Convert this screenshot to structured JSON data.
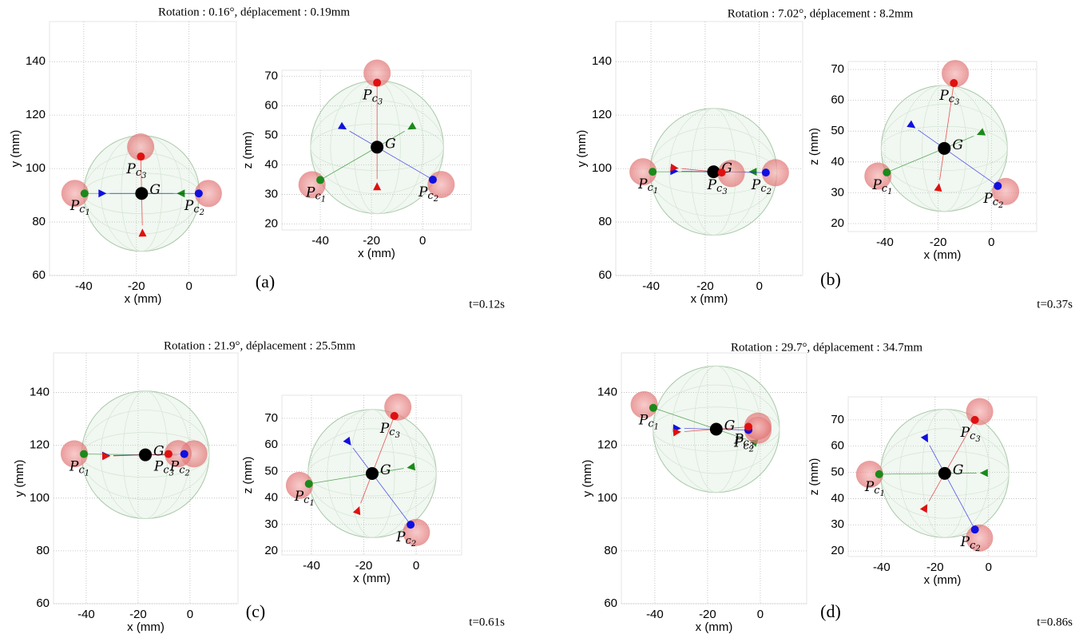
{
  "panels": [
    {
      "title": "Rotation : 0.16°, déplacement : 0.19mm",
      "label": "(a)",
      "time": "t=0.12s"
    },
    {
      "title": "Rotation : 7.02°, déplacement : 8.2mm",
      "label": "(b)",
      "time": "t=0.37s"
    },
    {
      "title": "Rotation : 21.9°, déplacement : 25.5mm",
      "label": "(c)",
      "time": "t=0.61s"
    },
    {
      "title": "Rotation : 29.7°, déplacement : 34.7mm",
      "label": "(d)",
      "time": "t=0.86s"
    }
  ],
  "chart_data": [
    {
      "type": "scatter",
      "xlabel": "x (mm)",
      "ylabel": "y (mm)",
      "xlim": [
        -53,
        18
      ],
      "ylim": [
        60,
        155
      ],
      "xticks": [
        -40,
        -20,
        0
      ],
      "yticks": [
        60,
        80,
        100,
        120,
        140
      ],
      "grid": true,
      "sphere_radius": 22,
      "series": [
        {
          "label": [
            "G"
          ],
          "color": "#000000",
          "x": [
            -18
          ],
          "values": [
            90.7
          ]
        },
        {
          "label": [
            "P",
            "c",
            "1"
          ],
          "color": "#1a8a1a",
          "x": [
            -39.7
          ],
          "values": [
            90.7
          ]
        },
        {
          "label": [
            "P",
            "c",
            "2"
          ],
          "color": "#1010e0",
          "x": [
            3.7
          ],
          "values": [
            90.7
          ]
        },
        {
          "label": [
            "P",
            "c",
            "3"
          ],
          "color": "#e01010",
          "x": [
            -18.3
          ],
          "values": [
            104.5
          ]
        }
      ]
    },
    {
      "type": "scatter",
      "xlabel": "x (mm)",
      "ylabel": "z (mm)",
      "xlim": [
        -55,
        19
      ],
      "ylim": [
        18,
        72
      ],
      "xticks": [
        -40,
        -20,
        0
      ],
      "yticks": [
        20,
        30,
        40,
        50,
        60,
        70
      ],
      "grid": true,
      "sphere_radius": 26,
      "series": [
        {
          "label": [
            "G"
          ],
          "color": "#000000",
          "x": [
            -17.8
          ],
          "values": [
            46
          ]
        },
        {
          "label": [
            "P",
            "c",
            "1"
          ],
          "color": "#1a8a1a",
          "x": [
            -40
          ],
          "values": [
            34.9
          ]
        },
        {
          "label": [
            "P",
            "c",
            "2"
          ],
          "color": "#1010e0",
          "x": [
            4
          ],
          "values": [
            35
          ]
        },
        {
          "label": [
            "P",
            "c",
            "3"
          ],
          "color": "#e01010",
          "x": [
            -17.8
          ],
          "values": [
            67.8
          ]
        }
      ]
    },
    {
      "type": "scatter",
      "xlabel": "x (mm)",
      "ylabel": "y (mm)",
      "xlim": [
        -53,
        16
      ],
      "ylim": [
        60,
        155
      ],
      "xticks": [
        -40,
        -20,
        0
      ],
      "yticks": [
        60,
        80,
        100,
        120,
        140
      ],
      "grid": true,
      "sphere_radius": 23.4,
      "series": [
        {
          "label": [
            "G"
          ],
          "color": "#000000",
          "x": [
            -16.9
          ],
          "values": [
            98.8
          ]
        },
        {
          "label": [
            "P",
            "c",
            "1"
          ],
          "color": "#1a8a1a",
          "x": [
            -39.4
          ],
          "values": [
            98.8
          ]
        },
        {
          "label": [
            "P",
            "c",
            "2"
          ],
          "color": "#1010e0",
          "x": [
            2.4
          ],
          "values": [
            98.5
          ]
        },
        {
          "label": [
            "P",
            "c",
            "3"
          ],
          "color": "#e01010",
          "x": [
            -13.9
          ],
          "values": [
            98.5
          ]
        }
      ]
    },
    {
      "type": "scatter",
      "xlabel": "x (mm)",
      "ylabel": "z (mm)",
      "xlim": [
        -53.8,
        17
      ],
      "ylim": [
        17.4,
        72.6
      ],
      "xticks": [
        -40,
        -20,
        0
      ],
      "yticks": [
        20,
        30,
        40,
        50,
        60,
        70
      ],
      "grid": true,
      "sphere_radius": 23.7,
      "series": [
        {
          "label": [
            "G"
          ],
          "color": "#000000",
          "x": [
            -17.7
          ],
          "values": [
            44.4
          ]
        },
        {
          "label": [
            "P",
            "c",
            "1"
          ],
          "color": "#1a8a1a",
          "x": [
            -39.3
          ],
          "values": [
            36.6
          ]
        },
        {
          "label": [
            "P",
            "c",
            "2"
          ],
          "color": "#1010e0",
          "x": [
            2.4
          ],
          "values": [
            32.2
          ]
        },
        {
          "label": [
            "P",
            "c",
            "3"
          ],
          "color": "#e01010",
          "x": [
            -14.1
          ],
          "values": [
            65.6
          ]
        }
      ]
    },
    {
      "type": "scatter",
      "xlabel": "x (mm)",
      "ylabel": "y (mm)",
      "xlim": [
        -52.6,
        18.5
      ],
      "ylim": [
        60,
        155
      ],
      "xticks": [
        -40,
        -20,
        0
      ],
      "yticks": [
        60,
        80,
        100,
        120,
        140
      ],
      "grid": true,
      "sphere_radius": 24.6,
      "series": [
        {
          "label": [
            "G"
          ],
          "color": "#000000",
          "x": [
            -17.2
          ],
          "values": [
            116.4
          ]
        },
        {
          "label": [
            "P",
            "c",
            "1"
          ],
          "color": "#1a8a1a",
          "x": [
            -40.9
          ],
          "values": [
            116.7
          ]
        },
        {
          "label": [
            "P",
            "c",
            "2"
          ],
          "color": "#1010e0",
          "x": [
            -2.2
          ],
          "values": [
            116.7
          ]
        },
        {
          "label": [
            "P",
            "c",
            "3"
          ],
          "color": "#e01010",
          "x": [
            -8.3
          ],
          "values": [
            116.7
          ]
        }
      ]
    },
    {
      "type": "scatter",
      "xlabel": "x (mm)",
      "ylabel": "z (mm)",
      "xlim": [
        -51.3,
        17.4
      ],
      "ylim": [
        18.5,
        78.7
      ],
      "xticks": [
        -40,
        -20,
        0
      ],
      "yticks": [
        20,
        30,
        40,
        50,
        60,
        70
      ],
      "grid": true,
      "sphere_radius": 24.5,
      "series": [
        {
          "label": [
            "G"
          ],
          "color": "#000000",
          "x": [
            -16.8
          ],
          "values": [
            49.2
          ]
        },
        {
          "label": [
            "P",
            "c",
            "1"
          ],
          "color": "#1a8a1a",
          "x": [
            -41
          ],
          "values": [
            45.3
          ]
        },
        {
          "label": [
            "P",
            "c",
            "2"
          ],
          "color": "#1010e0",
          "x": [
            -2.1
          ],
          "values": [
            29.9
          ]
        },
        {
          "label": [
            "P",
            "c",
            "3"
          ],
          "color": "#e01010",
          "x": [
            -8.3
          ],
          "values": [
            70.9
          ]
        }
      ]
    },
    {
      "type": "scatter",
      "xlabel": "x (mm)",
      "ylabel": "y (mm)",
      "xlim": [
        -52.7,
        17.6
      ],
      "ylim": [
        60,
        155
      ],
      "xticks": [
        -40,
        -20,
        0
      ],
      "yticks": [
        60,
        80,
        100,
        120,
        140
      ],
      "grid": true,
      "sphere_radius": 24,
      "series": [
        {
          "label": [
            "G"
          ],
          "color": "#000000",
          "x": [
            -16.7
          ],
          "values": [
            126.1
          ]
        },
        {
          "label": [
            "P",
            "c",
            "1"
          ],
          "color": "#1a8a1a",
          "x": [
            -40.6
          ],
          "values": [
            134.2
          ]
        },
        {
          "label": [
            "P",
            "c",
            "2"
          ],
          "color": "#1010e0",
          "x": [
            -4.5
          ],
          "values": [
            125.8
          ]
        },
        {
          "label": [
            "P",
            "c",
            "3"
          ],
          "color": "#e01010",
          "x": [
            -4.5
          ],
          "values": [
            127
          ]
        }
      ]
    },
    {
      "type": "scatter",
      "xlabel": "x (mm)",
      "ylabel": "z (mm)",
      "xlim": [
        -52.5,
        18
      ],
      "ylim": [
        17.9,
        78.8
      ],
      "xticks": [
        -40,
        -20,
        0
      ],
      "yticks": [
        20,
        30,
        40,
        50,
        60,
        70
      ],
      "grid": true,
      "sphere_radius": 24,
      "series": [
        {
          "label": [
            "G"
          ],
          "color": "#000000",
          "x": [
            -16.4
          ],
          "values": [
            49.6
          ]
        },
        {
          "label": [
            "P",
            "c",
            "1"
          ],
          "color": "#1a8a1a",
          "x": [
            -40.9
          ],
          "values": [
            49.3
          ]
        },
        {
          "label": [
            "P",
            "c",
            "2"
          ],
          "color": "#1010e0",
          "x": [
            -5.1
          ],
          "values": [
            28.2
          ]
        },
        {
          "label": [
            "P",
            "c",
            "3"
          ],
          "color": "#e01010",
          "x": [
            -5.1
          ],
          "values": [
            70
          ]
        }
      ]
    }
  ]
}
